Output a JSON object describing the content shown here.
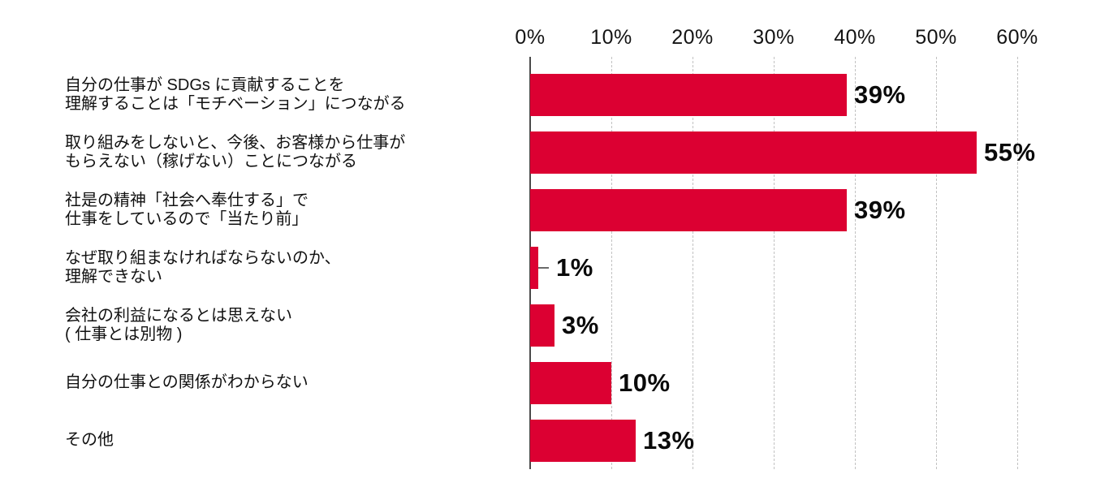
{
  "chart_data": {
    "type": "bar",
    "orientation": "horizontal",
    "title": "",
    "xlabel": "",
    "ylabel": "",
    "x_axis": {
      "min": 0,
      "max": 60,
      "unit": "%",
      "tick_labels": [
        "0%",
        "10%",
        "20%",
        "30%",
        "40%",
        "50%",
        "60%"
      ],
      "tick_values": [
        0,
        10,
        20,
        30,
        40,
        50,
        60
      ],
      "position": "top",
      "grid": "dashed"
    },
    "categories": [
      "自分の仕事が SDGs に貢献することを理解することは「モチベーション」につながる",
      "取り組みをしないと、今後、お客様から仕事がもらえない（稼げない）ことにつながる",
      "社是の精神「社会へ奉仕する」で仕事をしているので「当たり前」",
      "なぜ取り組まなければならないのか、理解できない",
      "会社の利益になるとは思えない ( 仕事とは別物 )",
      "自分の仕事との関係がわからない",
      "その他"
    ],
    "values": [
      39,
      55,
      39,
      1,
      3,
      10,
      13
    ],
    "items": [
      {
        "label_lines": [
          "自分の仕事が SDGs に貢献することを",
          "理解することは「モチベーション」につながる"
        ],
        "value": 39,
        "value_label": "39%",
        "connector": false
      },
      {
        "label_lines": [
          "取り組みをしないと、今後、お客様から仕事が",
          "もらえない（稼げない）ことにつながる"
        ],
        "value": 55,
        "value_label": "55%",
        "connector": false
      },
      {
        "label_lines": [
          "社是の精神「社会へ奉仕する」で",
          "仕事をしているので「当たり前」"
        ],
        "value": 39,
        "value_label": "39%",
        "connector": false
      },
      {
        "label_lines": [
          "なぜ取り組まなければならないのか、",
          "理解できない"
        ],
        "value": 1,
        "value_label": "1%",
        "connector": true
      },
      {
        "label_lines": [
          "会社の利益になるとは思えない",
          "( 仕事とは別物 )"
        ],
        "value": 3,
        "value_label": "3%",
        "connector": false
      },
      {
        "label_lines": [
          "自分の仕事との関係がわからない"
        ],
        "value": 10,
        "value_label": "10%",
        "connector": false
      },
      {
        "label_lines": [
          "その他"
        ],
        "value": 13,
        "value_label": "13%",
        "connector": false
      }
    ],
    "colors": {
      "bar": "#DC0032",
      "axis_line": "#4a4a4a",
      "gridline": "#c2c2c2",
      "text": "#111111",
      "value_text": "#0a0a0a",
      "background": "#ffffff"
    },
    "legend": null
  }
}
